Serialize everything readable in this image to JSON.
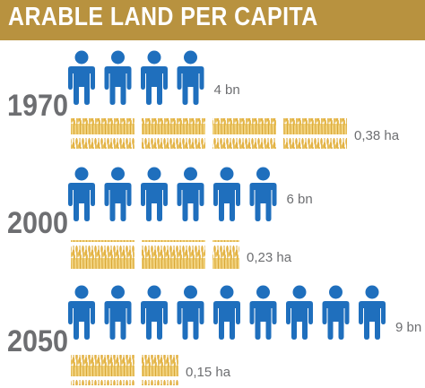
{
  "title": "ARABLE LAND PER CAPITA",
  "colors": {
    "banner": "#b8923f",
    "person": "#1f6fbd",
    "wheat": "#e3b245",
    "text": "#6d6e71"
  },
  "chart_data": {
    "type": "pictograph",
    "title": "ARABLE LAND PER CAPITA",
    "series": [
      {
        "year": "1970",
        "population": 4,
        "population_label": "4 bn",
        "land_per_capita": 0.38,
        "land_label": "0,38 ha"
      },
      {
        "year": "2000",
        "population": 6,
        "population_label": "6 bn",
        "land_per_capita": 0.23,
        "land_label": "0,23 ha"
      },
      {
        "year": "2050",
        "population": 9,
        "population_label": "9 bn",
        "land_per_capita": 0.15,
        "land_label": "0,15 ha"
      }
    ]
  }
}
